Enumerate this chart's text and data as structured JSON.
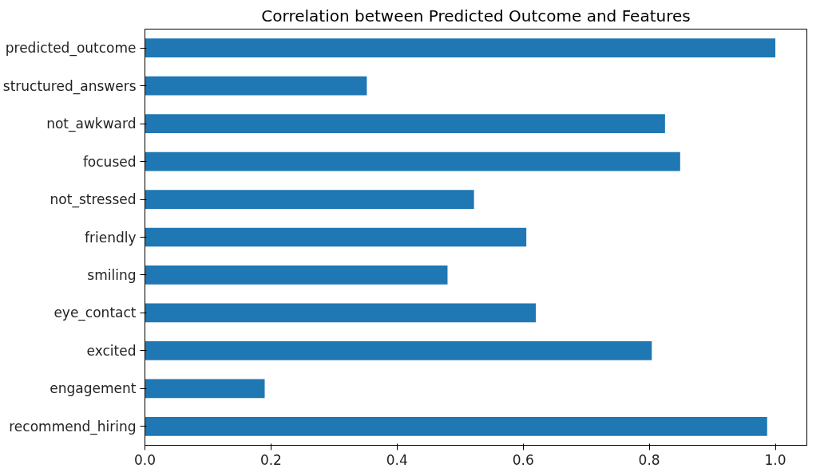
{
  "chart_data": {
    "type": "bar",
    "orientation": "horizontal",
    "title": "Correlation between Predicted Outcome and Features",
    "categories": [
      "predicted_outcome",
      "structured_answers",
      "not_awkward",
      "focused",
      "not_stressed",
      "friendly",
      "smiling",
      "eye_contact",
      "excited",
      "engagement",
      "recommend_hiring"
    ],
    "values": [
      1.0,
      0.352,
      0.825,
      0.849,
      0.522,
      0.605,
      0.48,
      0.62,
      0.804,
      0.19,
      0.987
    ],
    "color": "#1f77b4",
    "xlim": [
      0,
      1.05
    ],
    "xticks": [
      {
        "value": 0,
        "label": "0.0"
      },
      0.2,
      0.4,
      0.6,
      0.8,
      {
        "value": 1,
        "label": "1.0"
      }
    ],
    "grid": false
  }
}
